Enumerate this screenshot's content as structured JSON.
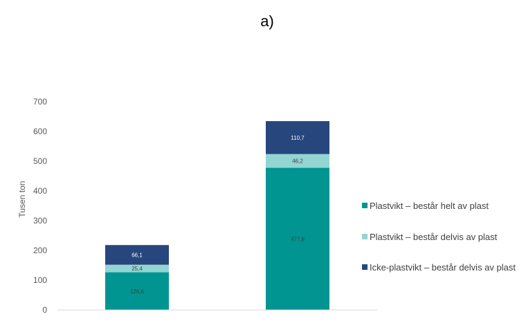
{
  "chart_data": {
    "type": "bar",
    "stacked": true,
    "title": "a)",
    "xlabel": "",
    "ylabel": "Tusen ton",
    "ylim": [
      0,
      700
    ],
    "yticks": [
      0,
      100,
      200,
      300,
      400,
      500,
      600,
      700
    ],
    "ytick_labels": [
      "0",
      "100",
      "200",
      "300",
      "400",
      "500",
      "600",
      "700"
    ],
    "categories": [
      "",
      ""
    ],
    "grid": false,
    "legend_position": "right",
    "series": [
      {
        "name": "Plastvikt – består helt av plast",
        "color": "#009591",
        "label_color": "#404040",
        "values": [
          126.6,
          477.8
        ],
        "labels": [
          "126,6",
          "477,8"
        ]
      },
      {
        "name": "Plastvikt – består delvis av plast",
        "color": "#93d5d3",
        "label_color": "#404040",
        "values": [
          25.4,
          46.2
        ],
        "labels": [
          "25,4",
          "46,2"
        ]
      },
      {
        "name": "Icke-plastvikt – består delvis av plast",
        "color": "#27467d",
        "label_color": "#ffffff",
        "values": [
          66.1,
          110.7
        ],
        "labels": [
          "66,1",
          "110,7"
        ]
      }
    ]
  }
}
